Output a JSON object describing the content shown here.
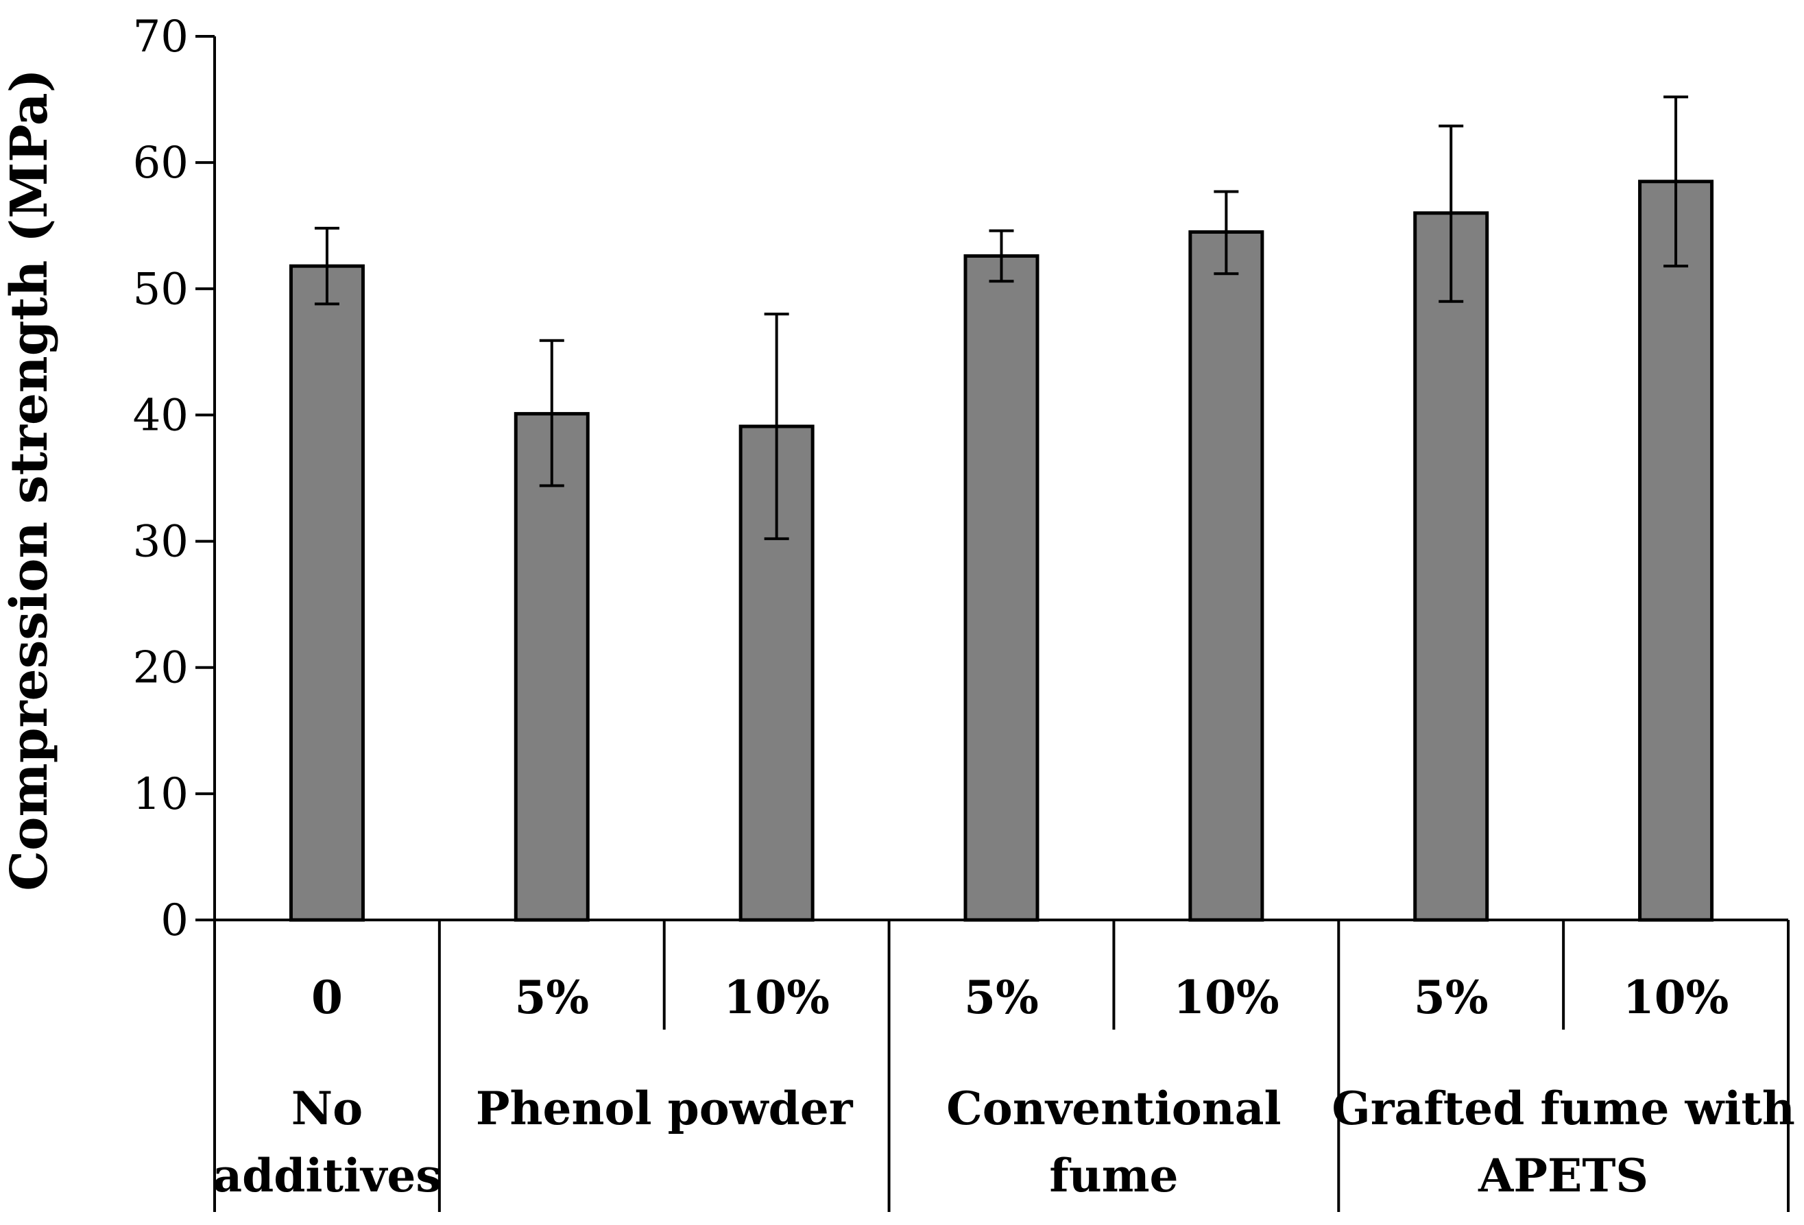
{
  "chart_data": {
    "type": "bar",
    "title": "",
    "xlabel": "",
    "ylabel": "Compression strength (MPa)",
    "ylim": [
      0,
      70
    ],
    "yticks": [
      0,
      10,
      20,
      30,
      40,
      50,
      60,
      70
    ],
    "grid": false,
    "bar_color": "#808080",
    "categories": [
      "0",
      "5%",
      "10%",
      "5%",
      "10%",
      "5%",
      "10%"
    ],
    "values": [
      51.8,
      40.1,
      39.1,
      52.6,
      54.5,
      56.0,
      58.5
    ],
    "error_high": [
      54.8,
      45.9,
      48.0,
      54.6,
      57.7,
      62.9,
      65.2
    ],
    "error_low": [
      48.8,
      34.4,
      30.2,
      50.6,
      51.2,
      49.0,
      51.8
    ],
    "groups": [
      {
        "label_lines": [
          "No",
          "additives"
        ],
        "span": 1
      },
      {
        "label_lines": [
          "Phenol powder"
        ],
        "span": 2
      },
      {
        "label_lines": [
          "Conventional",
          "fume"
        ],
        "span": 2
      },
      {
        "label_lines": [
          "Grafted fume with",
          "APETS"
        ],
        "span": 2
      }
    ]
  }
}
